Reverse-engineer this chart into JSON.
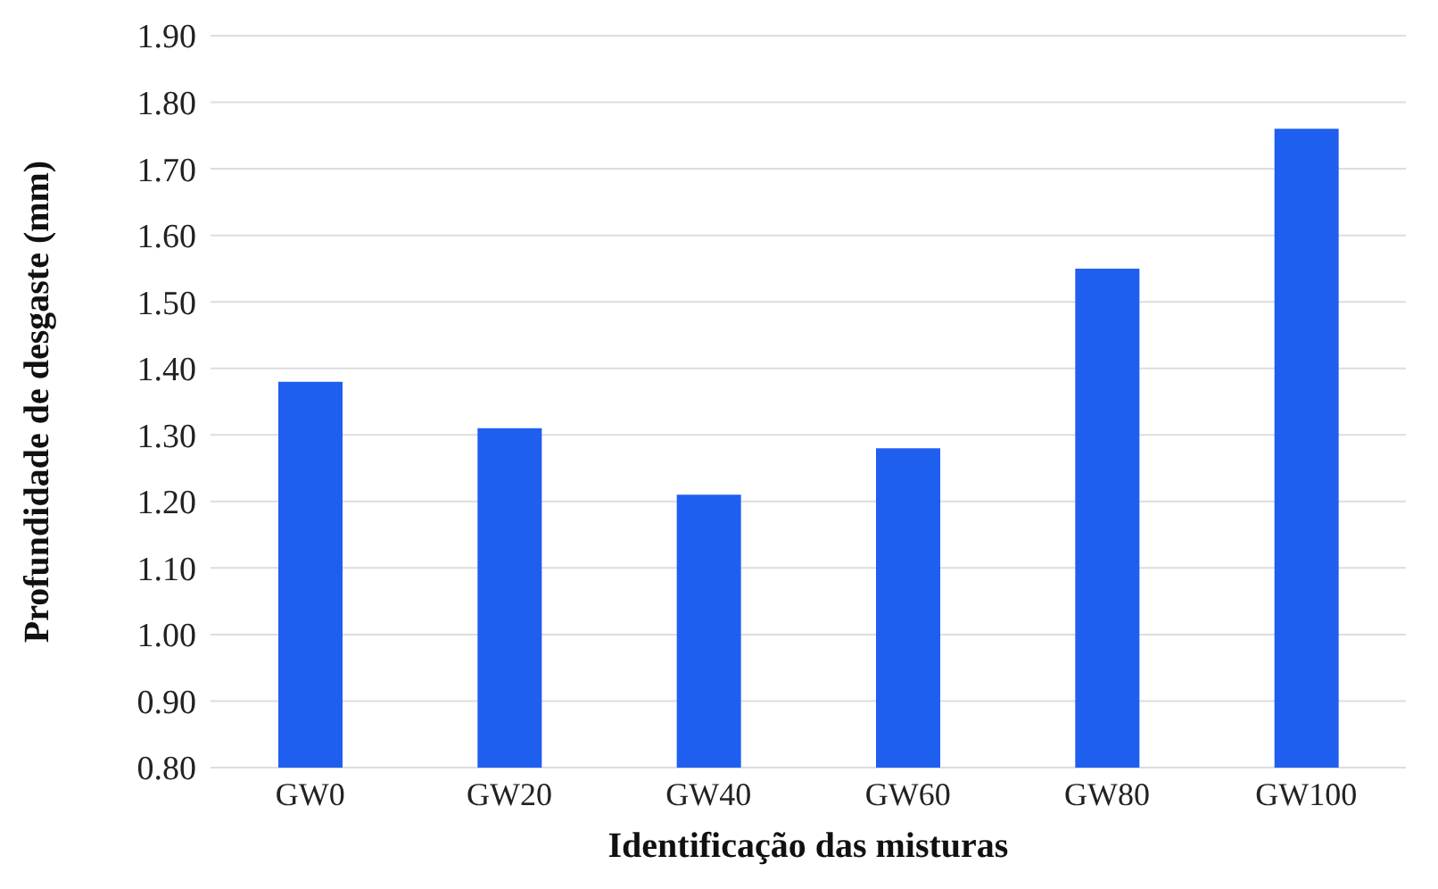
{
  "chart_data": {
    "type": "bar",
    "xlabel": "Identificação das misturas",
    "ylabel": "Profundidade de desgaste (mm)",
    "categories": [
      "GW0",
      "GW20",
      "GW40",
      "GW60",
      "GW80",
      "GW100"
    ],
    "values": [
      1.38,
      1.31,
      1.21,
      1.28,
      1.55,
      1.76
    ],
    "color": "#1f5ff0",
    "ylim": [
      0.8,
      1.9
    ],
    "yticks": [
      {
        "value": 0.8,
        "label": "0.80"
      },
      {
        "value": 0.9,
        "label": "0.90"
      },
      {
        "value": 1.0,
        "label": "1.00"
      },
      {
        "value": 1.1,
        "label": "1.10"
      },
      {
        "value": 1.2,
        "label": "1.20"
      },
      {
        "value": 1.3,
        "label": "1.30"
      },
      {
        "value": 1.4,
        "label": "1.40"
      },
      {
        "value": 1.5,
        "label": "1.50"
      },
      {
        "value": 1.6,
        "label": "1.60"
      },
      {
        "value": 1.7,
        "label": "1.70"
      },
      {
        "value": 1.8,
        "label": "1.80"
      },
      {
        "value": 1.9,
        "label": "1.90"
      }
    ],
    "grid": "y"
  }
}
